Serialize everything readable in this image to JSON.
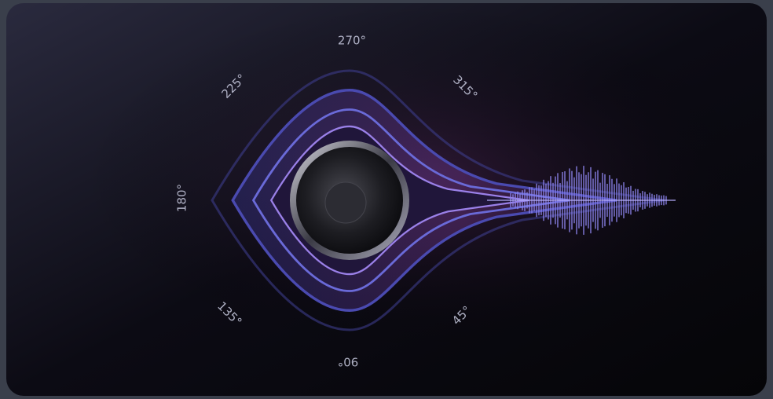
{
  "angle_labels": [
    "270°",
    "225°",
    "315°",
    "180°",
    "135°",
    "90°",
    "45°"
  ]
}
